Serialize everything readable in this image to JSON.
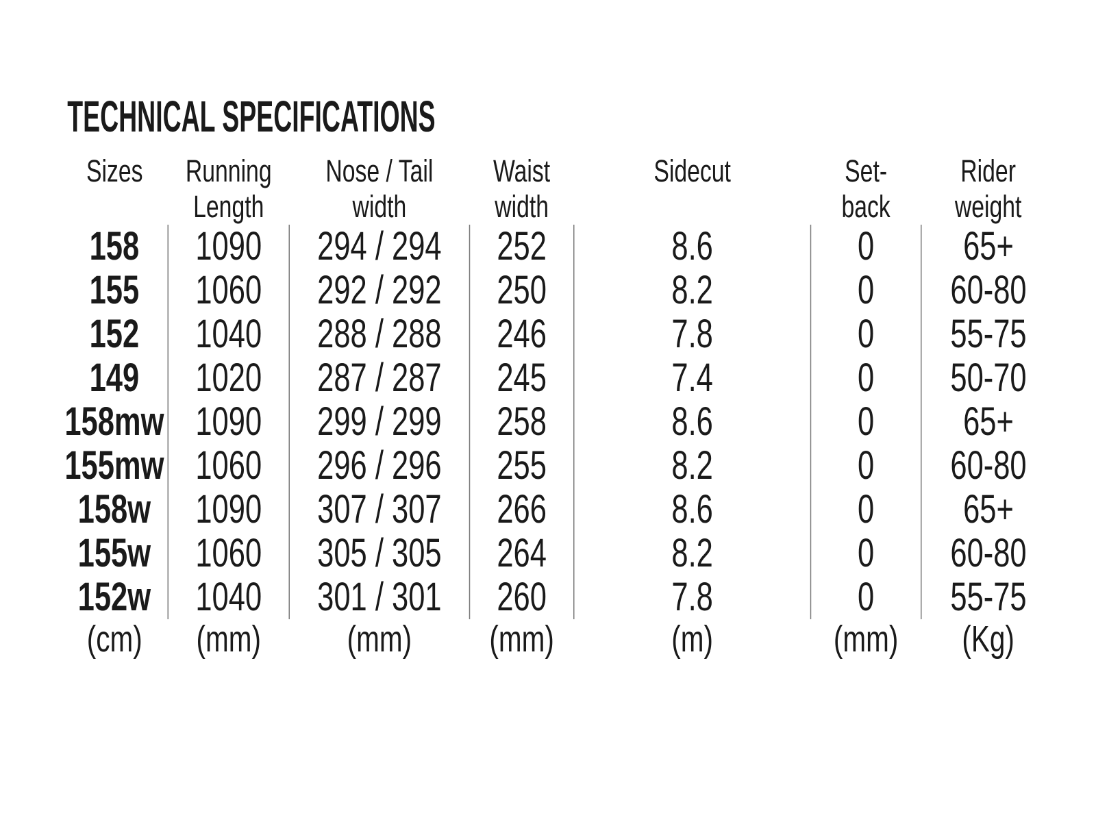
{
  "title": "TECHNICAL SPECIFICATIONS",
  "table": {
    "columns": [
      {
        "label": "Sizes",
        "unit": "(cm)"
      },
      {
        "label": "Running\nLength",
        "unit": "(mm)"
      },
      {
        "label": "Nose / Tail\nwidth",
        "unit": "(mm)"
      },
      {
        "label": "Waist\nwidth",
        "unit": "(mm)"
      },
      {
        "label": "Sidecut",
        "unit": "(m)"
      },
      {
        "label": "Set-\nback",
        "unit": "(mm)"
      },
      {
        "label": "Rider\nweight",
        "unit": "(Kg)"
      }
    ],
    "rows": [
      [
        "158",
        "1090",
        "294 / 294",
        "252",
        "8.6",
        "0",
        "65+"
      ],
      [
        "155",
        "1060",
        "292 / 292",
        "250",
        "8.2",
        "0",
        "60-80"
      ],
      [
        "152",
        "1040",
        "288 / 288",
        "246",
        "7.8",
        "0",
        "55-75"
      ],
      [
        "149",
        "1020",
        "287 / 287",
        "245",
        "7.4",
        "0",
        "50-70"
      ],
      [
        "158mw",
        "1090",
        "299 / 299",
        "258",
        "8.6",
        "0",
        "65+"
      ],
      [
        "155mw",
        "1060",
        "296 / 296",
        "255",
        "8.2",
        "0",
        "60-80"
      ],
      [
        "158w",
        "1090",
        "307 / 307",
        "266",
        "8.6",
        "0",
        "65+"
      ],
      [
        "155w",
        "1060",
        "305 / 305",
        "264",
        "8.2",
        "0",
        "60-80"
      ],
      [
        "152w",
        "1040",
        "301 / 301",
        "260",
        "7.8",
        "0",
        "55-75"
      ]
    ]
  }
}
